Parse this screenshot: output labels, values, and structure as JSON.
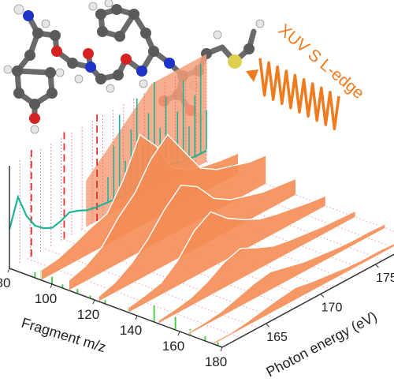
{
  "molecule": {
    "hydrogen_color": "#e6e6e6",
    "carbon_color": "#5a5a5a",
    "oxygen_color": "#d62222",
    "nitrogen_color": "#1f33c8",
    "sulfur_color": "#e0d050"
  },
  "beam": {
    "label": "XUV S L-edge",
    "color": "#f07a1e"
  },
  "chart_data": {
    "type": "area",
    "title": "",
    "xlabel": "Fragment m/z",
    "ylabel": "Photon energy (eV)",
    "x_ticks": [
      "80",
      "100",
      "120",
      "140",
      "160",
      "180"
    ],
    "y_ticks": [
      "165",
      "170",
      "175"
    ],
    "xlim": [
      80,
      180
    ],
    "ylim": [
      161,
      179
    ],
    "grid": false,
    "colors": {
      "waterfall_fill": "#f58c55",
      "back_panel_fill": "#f4a07a",
      "total_yield_line": "#1fb49a",
      "mass_spectrum": "#3cc83c",
      "guide_dashed": "#e03030",
      "guide_dotted": "#ef6b6b",
      "axis": "#333333"
    },
    "series": [
      {
        "values": [
          0.38,
          0.65,
          0.42,
          0.28,
          0.21,
          0.17,
          0.19,
          0.23,
          0.2,
          0.16,
          0.14
        ]
      },
      {
        "values": [
          0.13,
          0.12,
          0.11,
          0.11,
          0.13,
          0.16,
          0.19,
          0.2,
          0.16,
          0.13,
          0.12,
          0.11,
          0.11
        ]
      }
    ],
    "mass_peaks": [
      [
        92,
        0.3
      ],
      [
        95,
        0.55
      ],
      [
        100,
        0.4
      ],
      [
        105,
        0.2
      ],
      [
        112,
        0.25
      ],
      [
        118,
        0.15
      ],
      [
        125,
        0.2
      ],
      [
        136,
        0.3
      ],
      [
        148,
        0.9
      ],
      [
        158,
        0.7
      ],
      [
        165,
        0.35
      ],
      [
        172,
        0.25
      ],
      [
        178,
        0.2
      ]
    ],
    "energy_spectra": [
      {
        "mz": 95,
        "values": [
          0.1,
          0.12,
          0.18,
          0.25,
          0.3,
          0.55,
          0.9,
          0.7,
          0.4,
          0.3,
          0.25,
          0.22,
          0.2
        ]
      },
      {
        "mz": 108,
        "values": [
          0.1,
          0.15,
          0.25,
          0.45,
          0.6,
          0.85,
          1.0,
          0.75,
          0.5,
          0.4,
          0.35,
          0.3,
          0.28
        ]
      },
      {
        "mz": 122,
        "values": [
          0.05,
          0.1,
          0.2,
          0.35,
          0.55,
          0.7,
          0.6,
          0.4,
          0.3,
          0.25,
          0.2,
          0.18,
          0.16
        ]
      },
      {
        "mz": 136,
        "values": [
          0.05,
          0.08,
          0.12,
          0.25,
          0.45,
          0.55,
          0.4,
          0.3,
          0.22,
          0.18,
          0.15,
          0.12,
          0.1
        ]
      },
      {
        "mz": 150,
        "values": [
          0.03,
          0.05,
          0.08,
          0.15,
          0.25,
          0.3,
          0.22,
          0.15,
          0.12,
          0.1,
          0.08,
          0.07,
          0.06
        ]
      },
      {
        "mz": 164,
        "values": [
          0.02,
          0.03,
          0.05,
          0.1,
          0.15,
          0.18,
          0.14,
          0.1,
          0.08,
          0.06,
          0.05,
          0.05,
          0.04
        ]
      },
      {
        "mz": 176,
        "values": [
          0.02,
          0.02,
          0.04,
          0.07,
          0.1,
          0.12,
          0.09,
          0.07,
          0.05,
          0.04,
          0.04,
          0.03,
          0.03
        ]
      }
    ]
  }
}
